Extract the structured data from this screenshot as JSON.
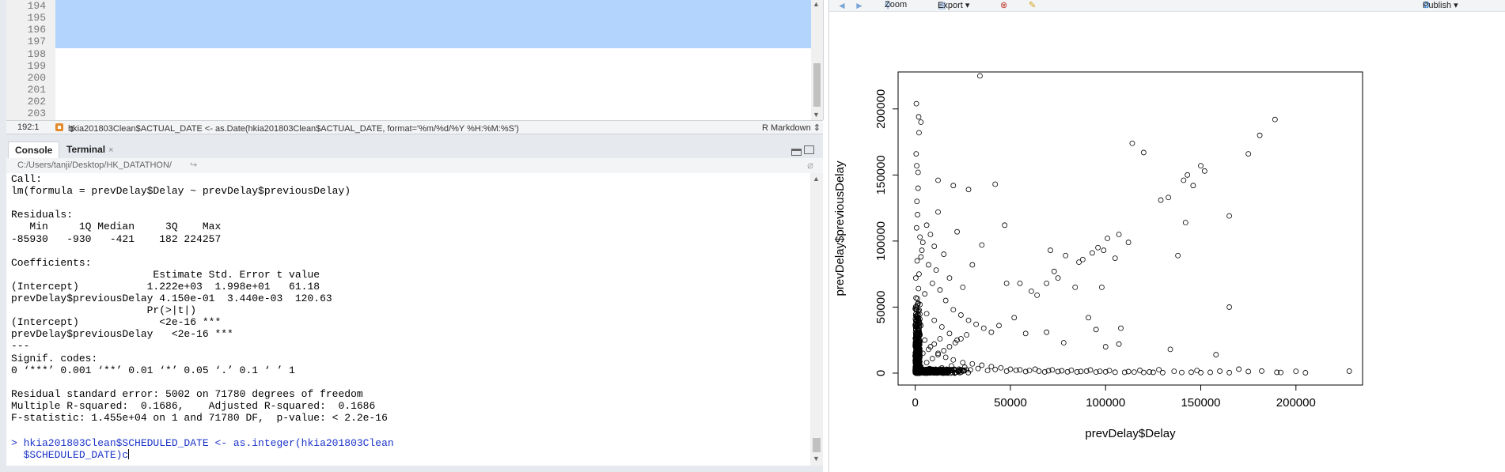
{
  "editor": {
    "line_numbers": [
      "194",
      "195",
      "196",
      "197",
      "198",
      "199",
      "200",
      "201",
      "202",
      "203"
    ],
    "cursor_position": "192:1",
    "current_line_summary": "hkia201803Clean$ACTUAL_DATE <- as.Date(hkia201803Clean$ACTUAL_DATE, format='%m/%d/%Y %H:%M:%S')",
    "summary_dropdown_arrow": "⇕",
    "file_type": "R Markdown ⇕"
  },
  "console_tabs": [
    {
      "label": "Console"
    },
    {
      "label": "Terminal",
      "close": "×"
    }
  ],
  "console": {
    "path": "C:/Users/tanji/Desktop/HK_DATATHON/",
    "path_arrow": "↪",
    "output_lines": [
      "Call:",
      "lm(formula = prevDelay$Delay ~ prevDelay$previousDelay)",
      "",
      "Residuals:",
      "   Min     1Q Median     3Q    Max ",
      "-85930   -930   -421    182 224257 ",
      "",
      "Coefficients:",
      "                       Estimate Std. Error t value",
      "(Intercept)           1.222e+03  1.998e+01   61.18",
      "prevDelay$previousDelay 4.150e-01  3.440e-03  120.63",
      "                      Pr(>|t|)    ",
      "(Intercept)             <2e-16 ***",
      "prevDelay$previousDelay   <2e-16 ***",
      "---",
      "Signif. codes:  ",
      "0 ‘***’ 0.001 ‘**’ 0.01 ‘*’ 0.05 ‘.’ 0.1 ‘ ’ 1",
      "",
      "Residual standard error: 5002 on 71780 degrees of freedom",
      "Multiple R-squared:  0.1686,    Adjusted R-squared:  0.1686 ",
      "F-statistic: 1.455e+04 on 1 and 71780 DF,  p-value: < 2.2e-16",
      ""
    ],
    "command_line_1": "> hkia201803Clean$SCHEDULED_DATE <- as.integer(hkia201803Clean",
    "command_line_2": "  $SCHEDULED_DATE)c"
  },
  "plots_toolbar": {
    "back_icon": "◄",
    "forward_icon": "►",
    "zoom_label": "Zoom",
    "export_label": "Export ▾",
    "publish_label": "Publish ▾"
  },
  "chart_data": {
    "type": "scatter",
    "xlabel": "prevDelay$Delay",
    "ylabel": "prevDelay$previousDelay",
    "xlim": [
      -9000,
      235000
    ],
    "ylim": [
      -9000,
      228000
    ],
    "xticks": [
      0,
      50000,
      100000,
      150000,
      200000
    ],
    "xtick_labels": [
      "0",
      "50000",
      "100000",
      "150000",
      "200000"
    ],
    "yticks": [
      0,
      50000,
      100000,
      150000,
      200000
    ],
    "ytick_labels": [
      "0",
      "50000",
      "100000",
      "150000",
      "200000"
    ],
    "grid": false,
    "points": [
      [
        34000,
        225000
      ],
      [
        600,
        204000
      ],
      [
        1800,
        194000
      ],
      [
        3000,
        190000
      ],
      [
        2000,
        182000
      ],
      [
        500,
        166000
      ],
      [
        800,
        157000
      ],
      [
        1500,
        152000
      ],
      [
        12000,
        146000
      ],
      [
        20000,
        142000
      ],
      [
        28000,
        139000
      ],
      [
        42000,
        143000
      ],
      [
        114000,
        174000
      ],
      [
        120000,
        167000
      ],
      [
        189000,
        192000
      ],
      [
        181000,
        180000
      ],
      [
        175000,
        166000
      ],
      [
        150000,
        157000
      ],
      [
        152000,
        153000
      ],
      [
        141000,
        146000
      ],
      [
        143000,
        150000
      ],
      [
        146000,
        142000
      ],
      [
        129000,
        131000
      ],
      [
        133000,
        133000
      ],
      [
        142000,
        114000
      ],
      [
        165000,
        119000
      ],
      [
        138000,
        89000
      ],
      [
        112000,
        99000
      ],
      [
        107000,
        105000
      ],
      [
        101000,
        102000
      ],
      [
        99000,
        93000
      ],
      [
        96000,
        95000
      ],
      [
        93000,
        91000
      ],
      [
        88000,
        86000
      ],
      [
        86000,
        84000
      ],
      [
        79000,
        89000
      ],
      [
        71000,
        93000
      ],
      [
        75000,
        72000
      ],
      [
        47000,
        112000
      ],
      [
        35000,
        97000
      ],
      [
        22000,
        107000
      ],
      [
        30000,
        82000
      ],
      [
        18000,
        72000
      ],
      [
        25000,
        65000
      ],
      [
        48000,
        68000
      ],
      [
        55000,
        68000
      ],
      [
        61000,
        62000
      ],
      [
        64000,
        59000
      ],
      [
        69000,
        68000
      ],
      [
        73000,
        77000
      ],
      [
        84000,
        65000
      ],
      [
        98000,
        65000
      ],
      [
        105000,
        87000
      ],
      [
        91000,
        42000
      ],
      [
        95000,
        33000
      ],
      [
        108000,
        34000
      ],
      [
        107000,
        22000
      ],
      [
        100000,
        20000
      ],
      [
        134000,
        18000
      ],
      [
        165000,
        50000
      ],
      [
        158000,
        14000
      ],
      [
        69000,
        31000
      ],
      [
        78000,
        23000
      ],
      [
        12000,
        122000
      ],
      [
        6000,
        112000
      ],
      [
        8000,
        105000
      ],
      [
        10000,
        96000
      ],
      [
        15000,
        90000
      ],
      [
        4000,
        99000
      ],
      [
        3000,
        88000
      ],
      [
        7000,
        82000
      ],
      [
        11000,
        78000
      ],
      [
        2000,
        75000
      ],
      [
        9000,
        68000
      ],
      [
        13000,
        63000
      ],
      [
        5000,
        60000
      ],
      [
        16000,
        55000
      ],
      [
        20000,
        48000
      ],
      [
        24000,
        44000
      ],
      [
        28000,
        40000
      ],
      [
        32000,
        37000
      ],
      [
        36000,
        34000
      ],
      [
        40000,
        31000
      ],
      [
        44000,
        36000
      ],
      [
        52000,
        42000
      ],
      [
        58000,
        30000
      ],
      [
        18000,
        30000
      ],
      [
        22000,
        25000
      ],
      [
        14000,
        35000
      ],
      [
        10000,
        40000
      ],
      [
        6000,
        45000
      ],
      [
        2500,
        52000
      ],
      [
        1500,
        140000
      ],
      [
        900,
        130000
      ],
      [
        1200,
        120000
      ],
      [
        700,
        110000
      ],
      [
        2500,
        103000
      ],
      [
        3500,
        93000
      ],
      [
        1000,
        85000
      ],
      [
        300,
        72000
      ],
      [
        1700,
        64000
      ],
      [
        400,
        57000
      ],
      [
        5000,
        25000
      ],
      [
        8000,
        20000
      ],
      [
        12000,
        15000
      ],
      [
        16000,
        12000
      ],
      [
        20000,
        10000
      ],
      [
        25000,
        8000
      ],
      [
        30000,
        7000
      ],
      [
        35000,
        6000
      ],
      [
        40000,
        5000
      ],
      [
        45000,
        4000
      ],
      [
        50000,
        3000
      ],
      [
        55000,
        2500
      ],
      [
        60000,
        2000
      ],
      [
        65000,
        1500
      ],
      [
        70000,
        1800
      ],
      [
        75000,
        1200
      ],
      [
        80000,
        1000
      ],
      [
        85000,
        900
      ],
      [
        90000,
        1500
      ],
      [
        95000,
        800
      ],
      [
        100000,
        1000
      ],
      [
        105000,
        700
      ],
      [
        110000,
        600
      ],
      [
        115000,
        800
      ],
      [
        120000,
        500
      ],
      [
        125000,
        600
      ],
      [
        130000,
        400
      ],
      [
        140000,
        500
      ],
      [
        145000,
        700
      ],
      [
        150000,
        400
      ],
      [
        155000,
        600
      ],
      [
        165000,
        400
      ],
      [
        175000,
        1200
      ],
      [
        190000,
        600
      ],
      [
        192000,
        500
      ],
      [
        205000,
        300
      ],
      [
        228000,
        1500
      ],
      [
        3000,
        5000
      ],
      [
        6000,
        8000
      ],
      [
        9000,
        11000
      ],
      [
        12000,
        14000
      ],
      [
        15000,
        17000
      ],
      [
        18000,
        20000
      ],
      [
        21000,
        23000
      ],
      [
        24000,
        26000
      ],
      [
        27000,
        29000
      ],
      [
        4000,
        15000
      ],
      [
        7000,
        18000
      ],
      [
        10000,
        22000
      ],
      [
        13000,
        26000
      ],
      [
        2000,
        12000
      ],
      [
        1000,
        30000
      ],
      [
        3000,
        36000
      ],
      [
        1500,
        42000
      ],
      [
        600,
        48000
      ],
      [
        2200,
        3000
      ],
      [
        4500,
        2000
      ],
      [
        7500,
        3500
      ],
      [
        11000,
        2500
      ],
      [
        14000,
        4000
      ],
      [
        17000,
        2000
      ],
      [
        19000,
        5500
      ],
      [
        23000,
        3000
      ],
      [
        26000,
        4500
      ],
      [
        29000,
        2500
      ],
      [
        33000,
        3500
      ],
      [
        38000,
        2000
      ],
      [
        42000,
        2800
      ],
      [
        48000,
        1500
      ],
      [
        53000,
        2200
      ],
      [
        58000,
        1200
      ],
      [
        63000,
        3000
      ],
      [
        68000,
        900
      ],
      [
        72000,
        2500
      ],
      [
        77000,
        1800
      ],
      [
        82000,
        2200
      ],
      [
        87000,
        1300
      ],
      [
        92000,
        2400
      ],
      [
        97000,
        1400
      ],
      [
        102000,
        1900
      ],
      [
        112000,
        1200
      ],
      [
        118000,
        2100
      ],
      [
        123000,
        900
      ],
      [
        128000,
        2600
      ],
      [
        136000,
        1400
      ],
      [
        148000,
        2000
      ],
      [
        160000,
        1500
      ],
      [
        170000,
        3000
      ],
      [
        182000,
        1600
      ],
      [
        200000,
        1400
      ]
    ]
  }
}
